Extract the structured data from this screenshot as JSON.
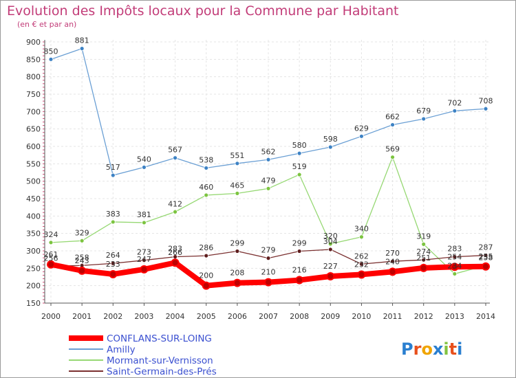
{
  "chart_data": {
    "type": "line",
    "title": "Evolution des Impôts locaux pour la Commune par Habitant",
    "subtitle": "(en € et par an)",
    "xlabel": "",
    "ylabel": "",
    "x": [
      "2000",
      "2001",
      "2002",
      "2003",
      "2004",
      "2005",
      "2006",
      "2007",
      "2008",
      "2009",
      "2010",
      "2011",
      "2012",
      "2013",
      "2014"
    ],
    "ylim": [
      150,
      900
    ],
    "yticks": [
      150,
      200,
      250,
      300,
      350,
      400,
      450,
      500,
      550,
      600,
      650,
      700,
      750,
      800,
      850,
      900
    ],
    "grid": true,
    "series": [
      {
        "name": "Amilly",
        "color": "#6a9fd4",
        "marker": "#3d82c4",
        "values": [
          850,
          881,
          517,
          540,
          567,
          538,
          551,
          562,
          580,
          598,
          629,
          662,
          679,
          702,
          708
        ]
      },
      {
        "name": "Mormant-sur-Vernisson",
        "color": "#96d873",
        "marker": "#7cc440",
        "values": [
          324,
          329,
          383,
          381,
          412,
          460,
          465,
          479,
          519,
          320,
          340,
          569,
          319,
          234,
          258
        ]
      },
      {
        "name": "Saint-Germain-des-Prés",
        "color": "#7a2f2f",
        "marker": "#5e1e1e",
        "values": [
          256,
          258,
          264,
          273,
          283,
          286,
          299,
          279,
          299,
          304,
          262,
          270,
          274,
          283,
          287
        ]
      },
      {
        "name": "CONFLANS-SUR-LOING",
        "color": "#ff0000",
        "marker": "#e00000",
        "values": [
          261,
          243,
          233,
          247,
          266,
          200,
          208,
          210,
          216,
          227,
          232,
          240,
          251,
          254,
          255
        ]
      }
    ],
    "legend_order": [
      "CONFLANS-SUR-LOING",
      "Amilly",
      "Mormant-sur-Vernisson",
      "Saint-Germain-des-Prés"
    ]
  },
  "watermark": "Proxiti"
}
